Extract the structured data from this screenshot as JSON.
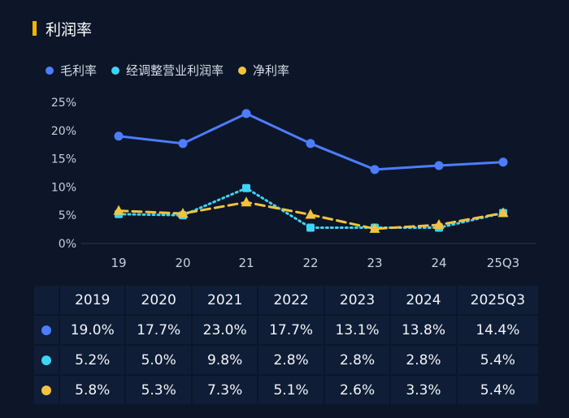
{
  "title": "利润率",
  "colors": {
    "gross": "#4c7dff",
    "adjusted": "#3fd3f5",
    "net": "#f6c23e",
    "axis": "#2a3650",
    "tick": "#c9d0dc"
  },
  "legend": [
    {
      "label": "毛利率",
      "color": "#4c7dff",
      "icon": "circle-icon"
    },
    {
      "label": "经调整营业利润率",
      "color": "#3fd3f5",
      "icon": "circle-icon"
    },
    {
      "label": "净利率",
      "color": "#f6c23e",
      "icon": "circle-icon"
    }
  ],
  "chart_data": {
    "type": "line",
    "title": "利润率",
    "categories": [
      "19",
      "20",
      "21",
      "22",
      "23",
      "24",
      "25Q3"
    ],
    "y_ticks": [
      "0%",
      "5%",
      "10%",
      "15%",
      "20%",
      "25%"
    ],
    "ylim": [
      0,
      25
    ],
    "series": [
      {
        "name": "毛利率",
        "values": [
          19.0,
          17.7,
          23.0,
          17.7,
          13.1,
          13.8,
          14.4
        ],
        "style": "solid",
        "marker": "circle"
      },
      {
        "name": "经调整营业利润率",
        "values": [
          5.2,
          5.0,
          9.8,
          2.8,
          2.8,
          2.8,
          5.4
        ],
        "style": "dotted",
        "marker": "square"
      },
      {
        "name": "净利率",
        "values": [
          5.8,
          5.3,
          7.3,
          5.1,
          2.6,
          3.3,
          5.4
        ],
        "style": "dashed",
        "marker": "triangle"
      }
    ]
  },
  "table": {
    "headers": [
      "2019",
      "2020",
      "2021",
      "2022",
      "2023",
      "2024",
      "2025Q3"
    ],
    "rows": [
      {
        "color": "#4c7dff",
        "values": [
          "19.0%",
          "17.7%",
          "23.0%",
          "17.7%",
          "13.1%",
          "13.8%",
          "14.4%"
        ]
      },
      {
        "color": "#3fd3f5",
        "values": [
          "5.2%",
          "5.0%",
          "9.8%",
          "2.8%",
          "2.8%",
          "2.8%",
          "5.4%"
        ]
      },
      {
        "color": "#f6c23e",
        "values": [
          "5.8%",
          "5.3%",
          "7.3%",
          "5.1%",
          "2.6%",
          "3.3%",
          "5.4%"
        ]
      }
    ]
  }
}
